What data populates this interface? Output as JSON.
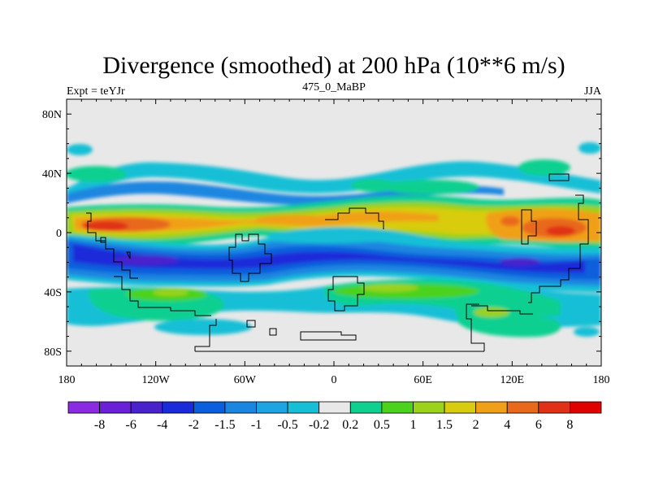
{
  "chart_data": {
    "type": "heatmap",
    "title": "Divergence (smoothed) at 200 hPa (10**6 m/s)",
    "left_label": "Expt = teYJr",
    "center_label": "475_0_MaBP",
    "right_label": "JJA",
    "xlim": [
      -180,
      180
    ],
    "ylim": [
      -90,
      90
    ],
    "x_ticks": [
      {
        "value": -180,
        "label": "180"
      },
      {
        "value": -120,
        "label": "120W"
      },
      {
        "value": -60,
        "label": "60W"
      },
      {
        "value": 0,
        "label": "0"
      },
      {
        "value": 60,
        "label": "60E"
      },
      {
        "value": 120,
        "label": "120E"
      },
      {
        "value": 180,
        "label": "180"
      }
    ],
    "y_ticks": [
      {
        "value": 80,
        "label": "80N"
      },
      {
        "value": 40,
        "label": "40N"
      },
      {
        "value": 0,
        "label": "0"
      },
      {
        "value": -40,
        "label": "40S"
      },
      {
        "value": -80,
        "label": "80S"
      }
    ],
    "colorbar": {
      "boundaries": [
        "-8",
        "-6",
        "-4",
        "-2",
        "-1.5",
        "-1",
        "-0.5",
        "-0.2",
        "0.2",
        "0.5",
        "1",
        "1.5",
        "2",
        "4",
        "6",
        "8"
      ],
      "colors": [
        "#8a2be2",
        "#6a1fd8",
        "#4a22cc",
        "#1a2bd9",
        "#0b5fdc",
        "#1a86e0",
        "#1ea4e0",
        "#17bfd6",
        "#e8e8e8",
        "#10d090",
        "#4cd21c",
        "#9ad21c",
        "#d8cc10",
        "#f0a018",
        "#e8681c",
        "#e03018",
        "#e00000"
      ]
    },
    "bands": [
      {
        "name": "northern-subtropical-convergence",
        "lat_center": 38,
        "value": -1.0
      },
      {
        "name": "northern-tropical-divergence",
        "lat_center": 10,
        "value": 3.0
      },
      {
        "name": "equatorial-convergence",
        "lat_center": -15,
        "value": -3.0
      },
      {
        "name": "southern-subtropical-divergence",
        "lat_center": -42,
        "value": 1.0
      }
    ],
    "features": [
      {
        "name": "max-divergence-west-pacific",
        "lon": 145,
        "lat": 5,
        "value": 6
      },
      {
        "name": "max-divergence-east-pacific",
        "lon": -150,
        "lat": 5,
        "value": 5
      },
      {
        "name": "max-convergence-south-pacific",
        "lon": -110,
        "lat": -20,
        "value": -4
      }
    ]
  }
}
